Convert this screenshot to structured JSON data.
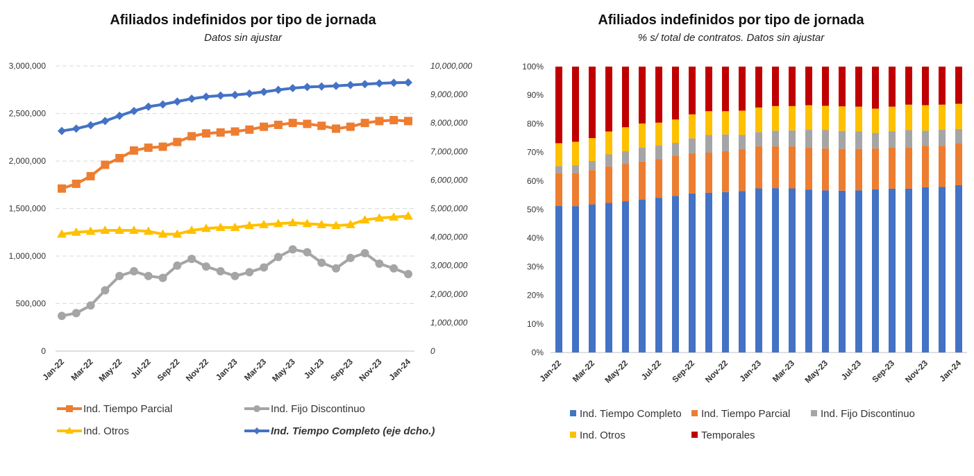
{
  "chart_data": [
    {
      "type": "line",
      "title": "Afiliados indefinidos por tipo de jornada",
      "subtitle": "Datos sin ajustar",
      "x": [
        "Jan-22",
        "Feb-22",
        "Mar-22",
        "Apr-22",
        "May-22",
        "Jun-22",
        "Jul-22",
        "Aug-22",
        "Sep-22",
        "Oct-22",
        "Nov-22",
        "Dec-22",
        "Jan-23",
        "Feb-23",
        "Mar-23",
        "Apr-23",
        "May-23",
        "Jun-23",
        "Jul-23",
        "Aug-23",
        "Sep-23",
        "Oct-23",
        "Nov-23",
        "Dec-23",
        "Jan-24"
      ],
      "xtick_labels": [
        "Jan-22",
        "Mar-22",
        "May-22",
        "Jul-22",
        "Sep-22",
        "Nov-22",
        "Jan-23",
        "Mar-23",
        "May-23",
        "Jul-23",
        "Sep-23",
        "Nov-23",
        "Jan-24"
      ],
      "ylim": [
        0,
        3000000
      ],
      "y_ticks": [
        "0",
        "500,000",
        "1,000,000",
        "1,500,000",
        "2,000,000",
        "2,500,000",
        "3,000,000"
      ],
      "y2lim": [
        0,
        10000000
      ],
      "y2_ticks": [
        "0",
        "1,000,000",
        "2,000,000",
        "3,000,000",
        "4,000,000",
        "5,000,000",
        "6,000,000",
        "7,000,000",
        "8,000,000",
        "9,000,000",
        "10,000,000"
      ],
      "grid": true,
      "legend_position": "bottom",
      "series": [
        {
          "name": "Ind. Tiempo Parcial",
          "axis": "left",
          "color": "#ED7D31",
          "marker": "square",
          "values": [
            1710000,
            1760000,
            1840000,
            1960000,
            2030000,
            2110000,
            2140000,
            2150000,
            2200000,
            2260000,
            2290000,
            2300000,
            2310000,
            2330000,
            2360000,
            2380000,
            2400000,
            2390000,
            2370000,
            2340000,
            2360000,
            2400000,
            2420000,
            2430000,
            2420000
          ]
        },
        {
          "name": "Ind. Fijo Discontinuo",
          "axis": "left",
          "color": "#A5A5A5",
          "marker": "circle",
          "values": [
            370000,
            400000,
            480000,
            640000,
            790000,
            840000,
            790000,
            770000,
            900000,
            970000,
            890000,
            840000,
            790000,
            830000,
            880000,
            990000,
            1070000,
            1040000,
            930000,
            870000,
            980000,
            1030000,
            920000,
            870000,
            810000
          ]
        },
        {
          "name": "Ind. Otros",
          "axis": "left",
          "color": "#FFC000",
          "marker": "triangle",
          "values": [
            1230000,
            1250000,
            1260000,
            1270000,
            1270000,
            1270000,
            1260000,
            1230000,
            1230000,
            1270000,
            1290000,
            1300000,
            1300000,
            1320000,
            1330000,
            1340000,
            1350000,
            1340000,
            1330000,
            1320000,
            1330000,
            1380000,
            1400000,
            1410000,
            1420000
          ]
        },
        {
          "name": "Ind. Tiempo Completo (eje dcho.)",
          "axis": "right",
          "color": "#4472C4",
          "marker": "diamond",
          "values": [
            7720000,
            7800000,
            7920000,
            8070000,
            8250000,
            8420000,
            8570000,
            8650000,
            8750000,
            8850000,
            8920000,
            8960000,
            8980000,
            9030000,
            9090000,
            9160000,
            9220000,
            9260000,
            9280000,
            9300000,
            9330000,
            9360000,
            9390000,
            9410000,
            9420000
          ]
        }
      ]
    },
    {
      "type": "bar",
      "stacked": true,
      "title": "Afiliados indefinidos por tipo de jornada",
      "subtitle": "% s/ total de contratos. Datos sin ajustar",
      "categories": [
        "Jan-22",
        "Feb-22",
        "Mar-22",
        "Apr-22",
        "May-22",
        "Jun-22",
        "Jul-22",
        "Aug-22",
        "Sep-22",
        "Oct-22",
        "Nov-22",
        "Dec-22",
        "Jan-23",
        "Feb-23",
        "Mar-23",
        "Apr-23",
        "May-23",
        "Jun-23",
        "Jul-23",
        "Aug-23",
        "Sep-23",
        "Oct-23",
        "Nov-23",
        "Dec-23",
        "Jan-24"
      ],
      "xtick_labels": [
        "Jan-22",
        "Mar-22",
        "May-22",
        "Jul-22",
        "Sep-22",
        "Nov-22",
        "Jan-23",
        "Mar-23",
        "May-23",
        "Jul-23",
        "Sep-23",
        "Nov-23",
        "Jan-24"
      ],
      "ylim": [
        0,
        100
      ],
      "y_ticks": [
        "0%",
        "10%",
        "20%",
        "30%",
        "40%",
        "50%",
        "60%",
        "70%",
        "80%",
        "90%",
        "100%"
      ],
      "grid": false,
      "legend_position": "bottom",
      "series": [
        {
          "name": "Ind. Tiempo Completo",
          "color": "#4472C4",
          "values": [
            51.3,
            51.2,
            51.8,
            52.3,
            52.9,
            53.5,
            54.1,
            54.8,
            55.6,
            55.9,
            56.1,
            56.5,
            57.4,
            57.5,
            57.4,
            57.0,
            56.7,
            56.6,
            56.7,
            57.1,
            57.3,
            57.3,
            57.8,
            57.9,
            58.5
          ]
        },
        {
          "name": "Ind. Tiempo Parcial",
          "color": "#ED7D31",
          "values": [
            11.5,
            11.6,
            12.0,
            12.8,
            13.0,
            13.3,
            13.5,
            14.0,
            14.1,
            14.0,
            14.3,
            14.6,
            14.7,
            14.6,
            14.7,
            14.8,
            14.7,
            14.6,
            14.5,
            14.3,
            14.3,
            14.4,
            14.5,
            14.4,
            14.7
          ]
        },
        {
          "name": "Ind. Fijo Discontinuo",
          "color": "#A5A5A5",
          "values": [
            2.4,
            2.7,
            3.2,
            4.2,
            4.5,
            4.8,
            4.9,
            4.5,
            5.2,
            6.2,
            5.9,
            5.0,
            5.0,
            5.5,
            5.6,
            6.1,
            6.4,
            6.3,
            6.2,
            5.4,
            5.8,
            6.1,
            5.3,
            5.6,
            5.0
          ]
        },
        {
          "name": "Ind. Otros",
          "color": "#FFC000",
          "values": [
            8.0,
            8.2,
            8.0,
            8.0,
            8.4,
            8.5,
            7.9,
            8.2,
            8.4,
            8.3,
            8.1,
            8.5,
            8.6,
            8.6,
            8.5,
            8.6,
            8.5,
            8.6,
            8.6,
            8.5,
            8.6,
            8.9,
            8.9,
            8.8,
            8.8
          ]
        },
        {
          "name": "Temporales",
          "color": "#C00000",
          "values": [
            26.8,
            26.3,
            25.0,
            22.7,
            21.2,
            19.9,
            19.6,
            18.5,
            16.7,
            15.6,
            15.6,
            15.4,
            14.3,
            13.8,
            13.8,
            13.5,
            13.7,
            13.9,
            14.0,
            14.7,
            14.0,
            13.3,
            13.5,
            13.3,
            13.0
          ]
        }
      ]
    }
  ]
}
